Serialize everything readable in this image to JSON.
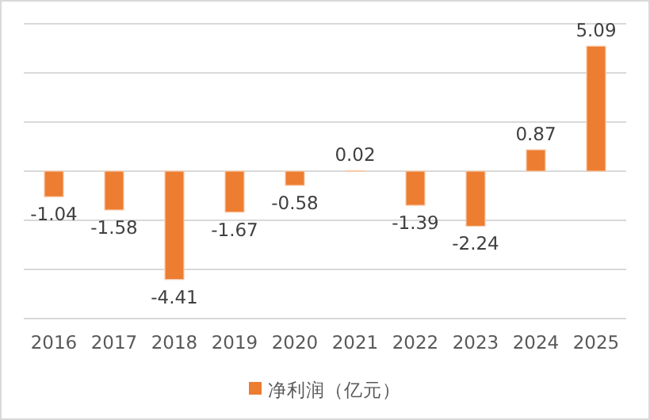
{
  "chart_data": {
    "type": "bar",
    "categories": [
      "2016",
      "2017",
      "2018",
      "2019",
      "2020",
      "2021",
      "2022",
      "2023",
      "2024",
      "2025"
    ],
    "series": [
      {
        "name": "净利润（亿元）",
        "color": "#ed7d31",
        "colors": [
          "#ed7d31",
          "#ed7d31",
          "#ed7d31",
          "#ed7d31",
          "#ed7d31",
          "#f4b183",
          "#ed7d31",
          "#ed7d31",
          "#ed7d31",
          "#ed7d31"
        ],
        "values": [
          -1.04,
          -1.58,
          -4.41,
          -1.67,
          -0.58,
          0.02,
          -1.39,
          -2.24,
          0.87,
          5.09
        ]
      }
    ],
    "ylim": [
      -6,
      6
    ],
    "yticks": [
      {
        "value": -6,
        "label": null
      },
      {
        "value": -4,
        "label": null
      },
      {
        "value": -2,
        "label": null
      },
      {
        "value": 0,
        "label": null
      },
      {
        "value": 2,
        "label": null
      },
      {
        "value": 4,
        "label": null
      },
      {
        "value": 6,
        "label": null
      }
    ],
    "grid": "y",
    "legend": "bottom",
    "data_labels": true
  }
}
